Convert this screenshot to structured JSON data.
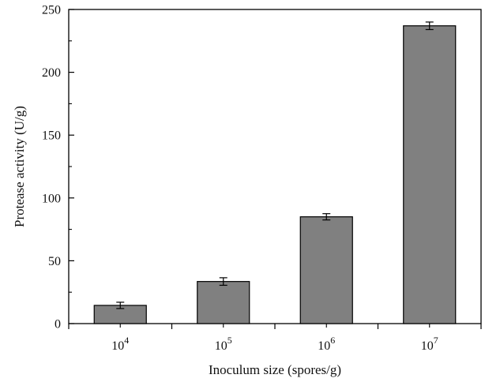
{
  "chart_data": {
    "type": "bar",
    "title": "",
    "xlabel": "Inoculum size (spores/g)",
    "ylabel": "Protease activity (U/g)",
    "categories": [
      {
        "base": "10",
        "exp": "4"
      },
      {
        "base": "10",
        "exp": "5"
      },
      {
        "base": "10",
        "exp": "6"
      },
      {
        "base": "10",
        "exp": "7"
      }
    ],
    "values": [
      14.5,
      33.5,
      85,
      237
    ],
    "errors": [
      2.5,
      3,
      2.5,
      3
    ],
    "ylim": [
      0,
      250
    ],
    "yticks": [
      0,
      50,
      100,
      150,
      200,
      250
    ],
    "grid": false,
    "bar_color": "#808080",
    "edge_color": "#000000"
  }
}
